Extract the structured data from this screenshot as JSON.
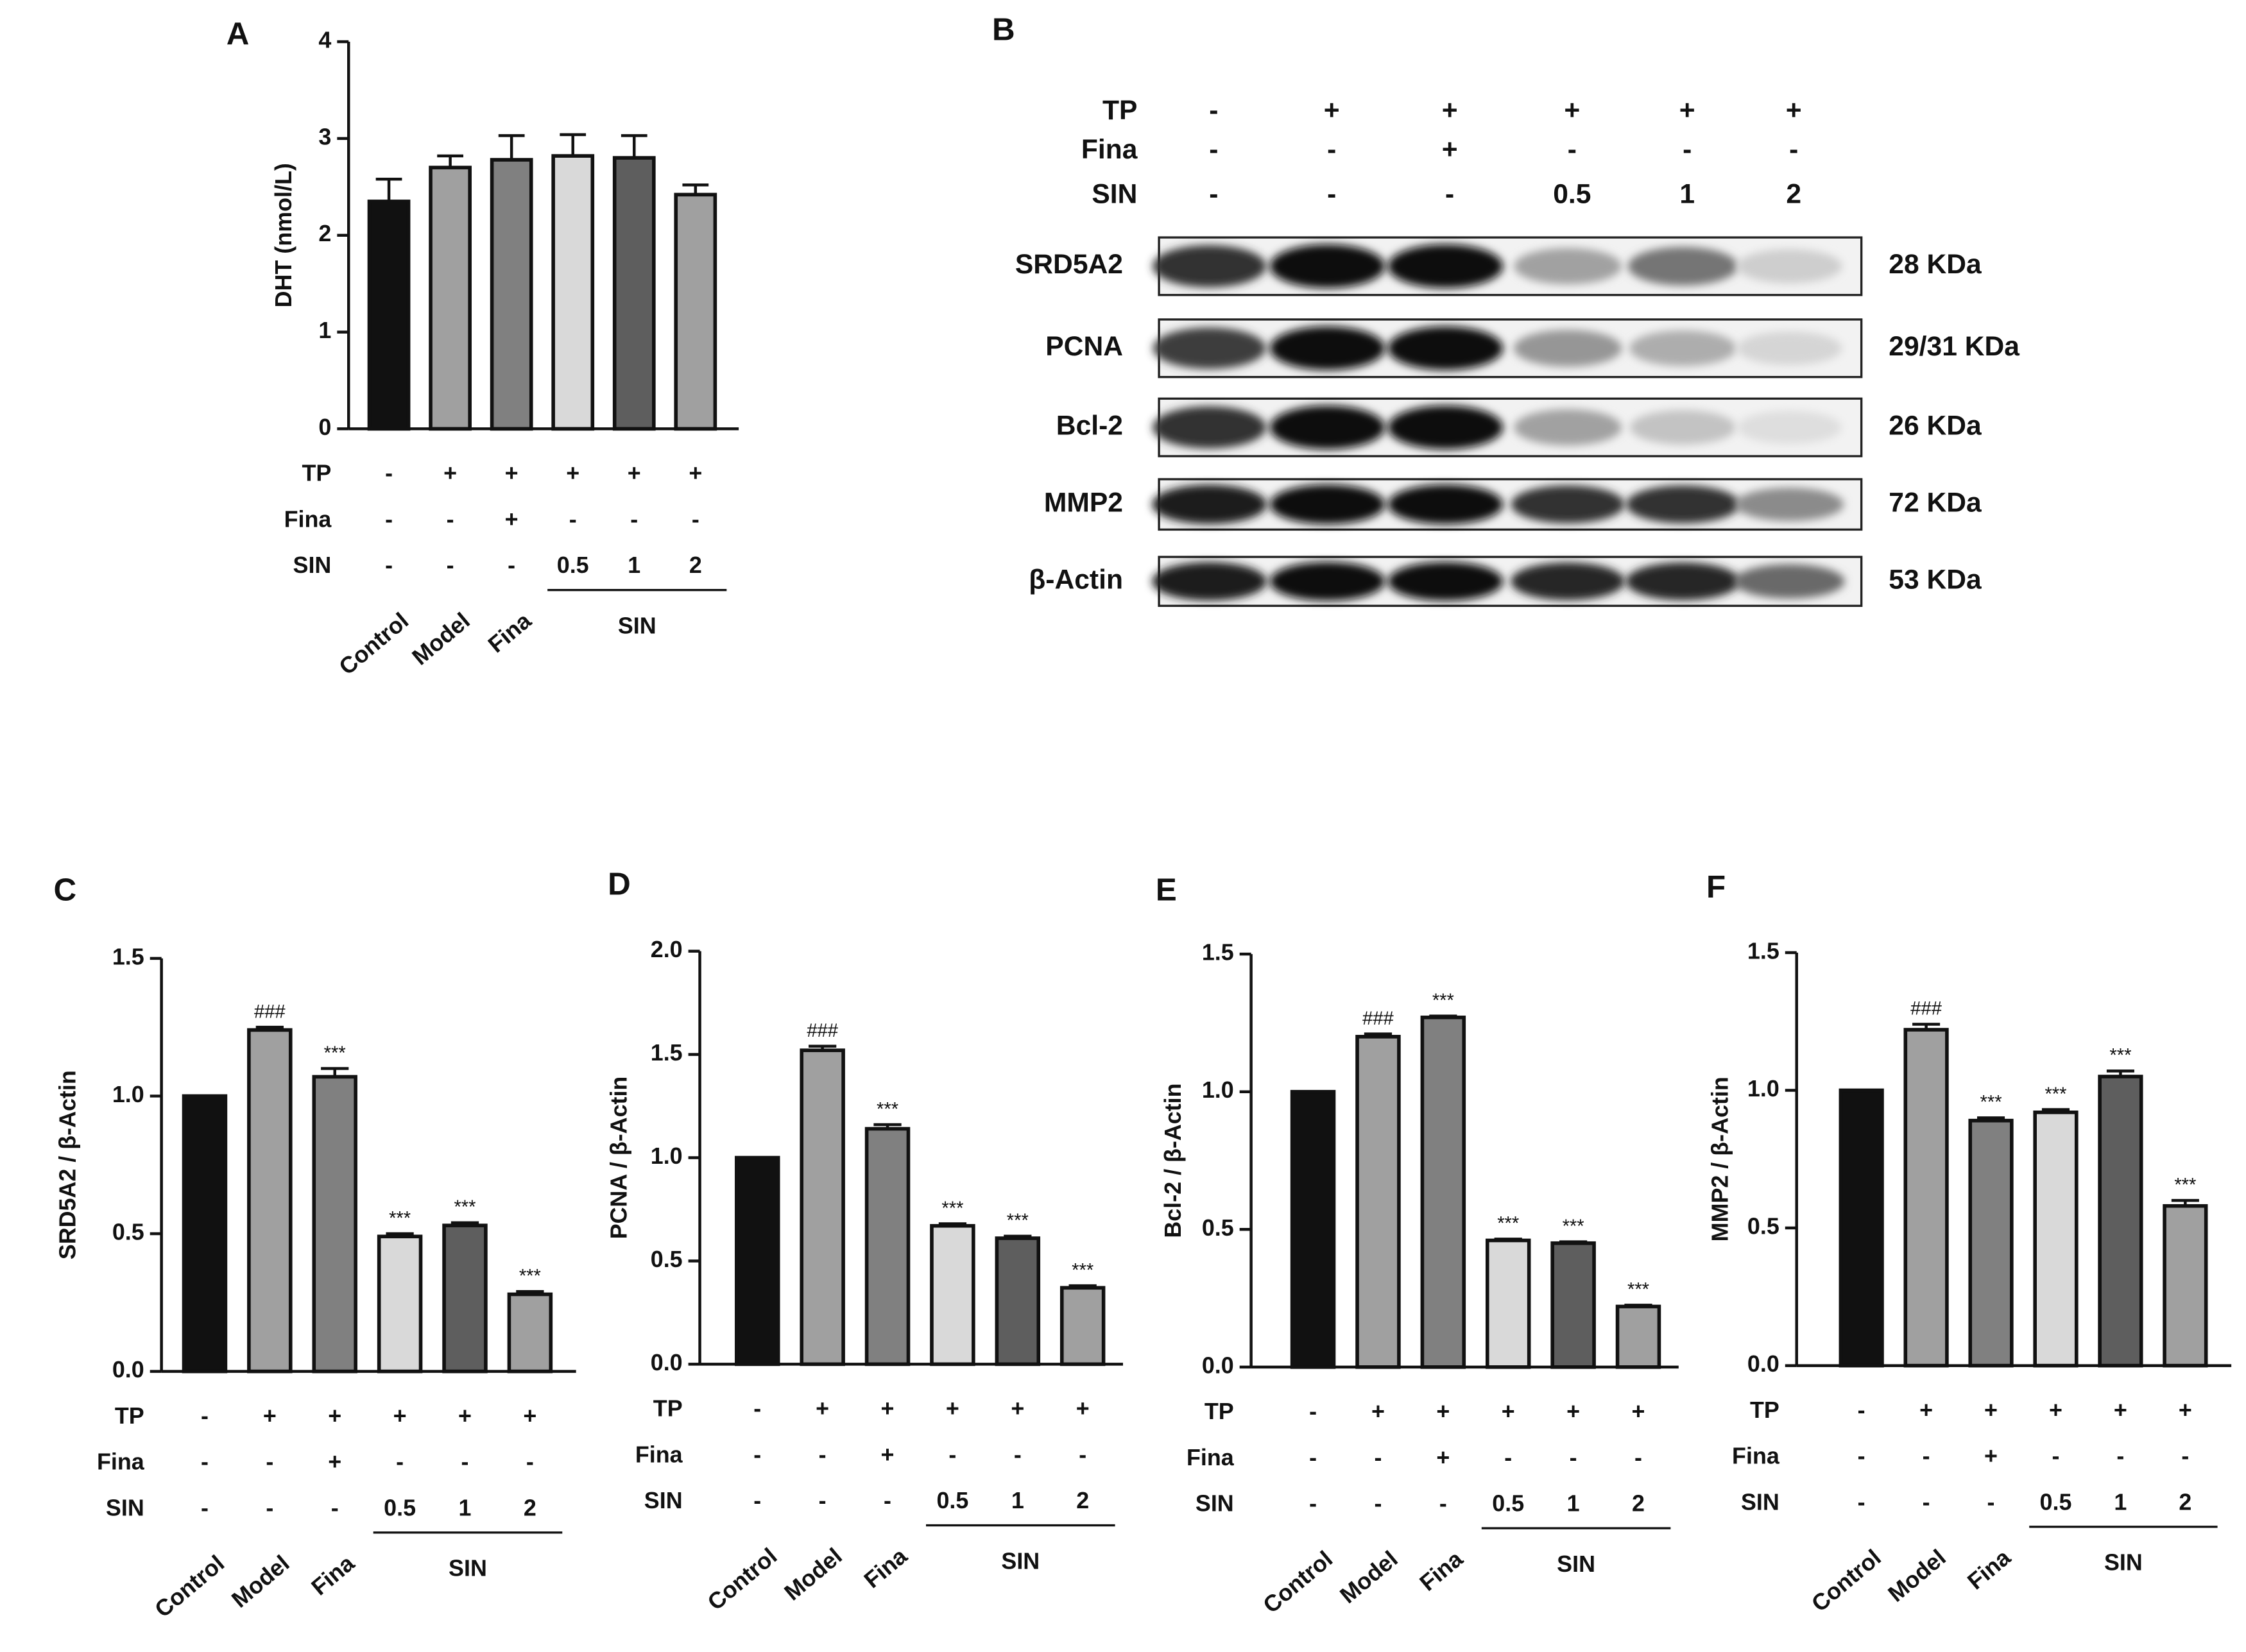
{
  "chart_data": [
    {
      "type": "bar",
      "panel": "A",
      "ylabel": "DHT (nmol/L)",
      "categories": [
        "Control",
        "Model",
        "Fina",
        null,
        null,
        null
      ],
      "group_label": "SIN",
      "values": [
        2.35,
        2.7,
        2.78,
        2.82,
        2.8,
        2.42
      ],
      "errors": [
        0.23,
        0.12,
        0.25,
        0.22,
        0.23,
        0.1
      ],
      "annotations": [
        null,
        null,
        null,
        null,
        null,
        null
      ],
      "colors": [
        "#111111",
        "#a0a0a0",
        "#808080",
        "#d9d9d9",
        "#5e5e5e",
        "#a0a0a0"
      ],
      "ylim": [
        0,
        4
      ],
      "yticks": [
        0,
        1,
        2,
        3,
        4
      ],
      "conditions": [
        {
          "name": "TP",
          "values": [
            "-",
            "+",
            "+",
            "+",
            "+",
            "+"
          ]
        },
        {
          "name": "Fina",
          "values": [
            "-",
            "-",
            "+",
            "-",
            "-",
            "-"
          ]
        },
        {
          "name": "SIN",
          "values": [
            "-",
            "-",
            "-",
            "0.5",
            "1",
            "2"
          ]
        }
      ]
    },
    {
      "type": "bar",
      "panel": "C",
      "ylabel": "SRD5A2 / β-Actin",
      "categories": [
        "Control",
        "Model",
        "Fina",
        null,
        null,
        null
      ],
      "group_label": "SIN",
      "values": [
        1.0,
        1.24,
        1.07,
        0.49,
        0.53,
        0.28
      ],
      "errors": [
        0,
        0.01,
        0.03,
        0.01,
        0.01,
        0.01
      ],
      "annotations": [
        null,
        "###",
        "***",
        "***",
        "***",
        "***"
      ],
      "colors": [
        "#111111",
        "#a0a0a0",
        "#808080",
        "#d9d9d9",
        "#5e5e5e",
        "#a0a0a0"
      ],
      "ylim": [
        0,
        1.5
      ],
      "yticks": [
        {
          "value": 0,
          "label": "0.0"
        },
        0.5,
        {
          "value": 1,
          "label": "1.0"
        },
        1.5
      ],
      "conditions": [
        {
          "name": "TP",
          "values": [
            "-",
            "+",
            "+",
            "+",
            "+",
            "+"
          ]
        },
        {
          "name": "Fina",
          "values": [
            "-",
            "-",
            "+",
            "-",
            "-",
            "-"
          ]
        },
        {
          "name": "SIN",
          "values": [
            "-",
            "-",
            "-",
            "0.5",
            "1",
            "2"
          ]
        }
      ]
    },
    {
      "type": "bar",
      "panel": "D",
      "ylabel": "PCNA / β-Actin",
      "categories": [
        "Control",
        "Model",
        "Fina",
        null,
        null,
        null
      ],
      "group_label": "SIN",
      "values": [
        1.0,
        1.52,
        1.14,
        0.67,
        0.61,
        0.37
      ],
      "errors": [
        0,
        0.02,
        0.02,
        0.01,
        0.01,
        0.01
      ],
      "annotations": [
        null,
        "###",
        "***",
        "***",
        "***",
        "***"
      ],
      "colors": [
        "#111111",
        "#a0a0a0",
        "#808080",
        "#d9d9d9",
        "#5e5e5e",
        "#a0a0a0"
      ],
      "ylim": [
        0,
        2
      ],
      "yticks": [
        {
          "value": 0,
          "label": "0.0"
        },
        0.5,
        {
          "value": 1,
          "label": "1.0"
        },
        1.5,
        {
          "value": 2,
          "label": "2.0"
        }
      ],
      "conditions": [
        {
          "name": "TP",
          "values": [
            "-",
            "+",
            "+",
            "+",
            "+",
            "+"
          ]
        },
        {
          "name": "Fina",
          "values": [
            "-",
            "-",
            "+",
            "-",
            "-",
            "-"
          ]
        },
        {
          "name": "SIN",
          "values": [
            "-",
            "-",
            "-",
            "0.5",
            "1",
            "2"
          ]
        }
      ]
    },
    {
      "type": "bar",
      "panel": "E",
      "ylabel": "Bcl-2 / β-Actin",
      "categories": [
        "Control",
        "Model",
        "Fina",
        null,
        null,
        null
      ],
      "group_label": "SIN",
      "values": [
        1.0,
        1.2,
        1.27,
        0.46,
        0.45,
        0.22
      ],
      "errors": [
        0,
        0.01,
        0.005,
        0.005,
        0.005,
        0.005
      ],
      "annotations": [
        null,
        "###",
        "***",
        "***",
        "***",
        "***"
      ],
      "colors": [
        "#111111",
        "#a0a0a0",
        "#808080",
        "#d9d9d9",
        "#5e5e5e",
        "#a0a0a0"
      ],
      "ylim": [
        0,
        1.5
      ],
      "yticks": [
        {
          "value": 0,
          "label": "0.0"
        },
        0.5,
        {
          "value": 1,
          "label": "1.0"
        },
        1.5
      ],
      "conditions": [
        {
          "name": "TP",
          "values": [
            "-",
            "+",
            "+",
            "+",
            "+",
            "+"
          ]
        },
        {
          "name": "Fina",
          "values": [
            "-",
            "-",
            "+",
            "-",
            "-",
            "-"
          ]
        },
        {
          "name": "SIN",
          "values": [
            "-",
            "-",
            "-",
            "0.5",
            "1",
            "2"
          ]
        }
      ]
    },
    {
      "type": "bar",
      "panel": "F",
      "ylabel": "MMP2 / β-Actin",
      "categories": [
        "Control",
        "Model",
        "Fina",
        null,
        null,
        null
      ],
      "group_label": "SIN",
      "values": [
        1.0,
        1.22,
        0.89,
        0.92,
        1.05,
        0.58
      ],
      "errors": [
        0,
        0.02,
        0.01,
        0.01,
        0.02,
        0.02
      ],
      "annotations": [
        null,
        "###",
        "***",
        "***",
        "***",
        "***"
      ],
      "colors": [
        "#111111",
        "#a0a0a0",
        "#808080",
        "#d9d9d9",
        "#5e5e5e",
        "#a0a0a0"
      ],
      "ylim": [
        0,
        1.5
      ],
      "yticks": [
        {
          "value": 0,
          "label": "0.0"
        },
        0.5,
        {
          "value": 1,
          "label": "1.0"
        },
        1.5
      ],
      "conditions": [
        {
          "name": "TP",
          "values": [
            "-",
            "+",
            "+",
            "+",
            "+",
            "+"
          ]
        },
        {
          "name": "Fina",
          "values": [
            "-",
            "-",
            "+",
            "-",
            "-",
            "-"
          ]
        },
        {
          "name": "SIN",
          "values": [
            "-",
            "-",
            "-",
            "0.5",
            "1",
            "2"
          ]
        }
      ]
    }
  ],
  "blot": {
    "panel": "B",
    "conditions": [
      {
        "name": "TP",
        "values": [
          "-",
          "+",
          "+",
          "+",
          "+",
          "+"
        ]
      },
      {
        "name": "Fina",
        "values": [
          "-",
          "-",
          "+",
          "-",
          "-",
          "-"
        ]
      },
      {
        "name": "SIN",
        "values": [
          "-",
          "-",
          "-",
          "0.5",
          "1",
          "2"
        ]
      }
    ],
    "bands": [
      {
        "name": "SRD5A2",
        "size": "28 KDa",
        "intensity": [
          0.85,
          1,
          1,
          0.35,
          0.55,
          0.15
        ]
      },
      {
        "name": "PCNA",
        "size": "29/31 KDa",
        "intensity": [
          0.8,
          1,
          1,
          0.4,
          0.3,
          0.12
        ]
      },
      {
        "name": "Bcl-2",
        "size": "26 KDa",
        "intensity": [
          0.85,
          1,
          1,
          0.35,
          0.2,
          0.08
        ]
      },
      {
        "name": "MMP2",
        "size": "72 KDa",
        "intensity": [
          0.95,
          1,
          1,
          0.85,
          0.85,
          0.45
        ]
      },
      {
        "name": "β-Actin",
        "size": "53 KDa",
        "intensity": [
          0.95,
          1,
          1,
          0.9,
          0.9,
          0.6
        ]
      }
    ]
  }
}
